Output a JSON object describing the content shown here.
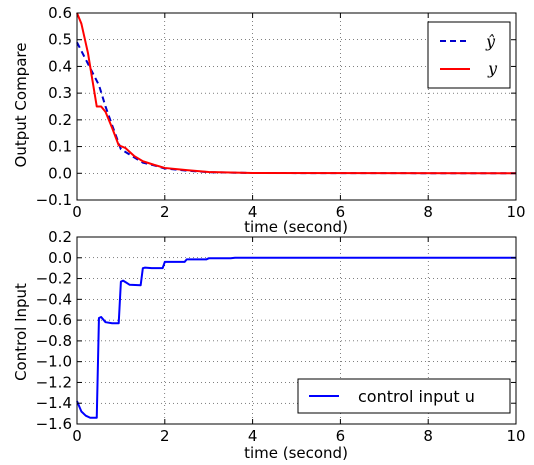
{
  "chart_data": [
    {
      "type": "line",
      "title": "",
      "xlabel": "time (second)",
      "ylabel": "Output Compare",
      "xlim": [
        0,
        10
      ],
      "ylim": [
        -0.1,
        0.6
      ],
      "xticks": [
        "0",
        "2",
        "4",
        "6",
        "8",
        "10"
      ],
      "yticks": [
        "−0.1",
        "0.0",
        "0.1",
        "0.2",
        "0.3",
        "0.4",
        "0.5",
        "0.6"
      ],
      "grid": true,
      "legend_position": "top-right",
      "series": [
        {
          "name": "ŷ",
          "color": "#0000cc",
          "style": "dashed",
          "points": [
            [
              0,
              0.49
            ],
            [
              0.25,
              0.41
            ],
            [
              0.5,
              0.33
            ],
            [
              0.65,
              0.25
            ],
            [
              0.8,
              0.18
            ],
            [
              1.0,
              0.09
            ],
            [
              1.25,
              0.065
            ],
            [
              1.5,
              0.04
            ],
            [
              1.75,
              0.03
            ],
            [
              2.0,
              0.018
            ],
            [
              2.5,
              0.01
            ],
            [
              3.0,
              0.004
            ],
            [
              4.0,
              0.001
            ],
            [
              10,
              0.0
            ]
          ]
        },
        {
          "name": "y",
          "color": "#ff0000",
          "style": "solid",
          "points": [
            [
              0,
              0.6
            ],
            [
              0.1,
              0.56
            ],
            [
              0.25,
              0.45
            ],
            [
              0.45,
              0.25
            ],
            [
              0.55,
              0.25
            ],
            [
              0.65,
              0.23
            ],
            [
              0.8,
              0.17
            ],
            [
              0.95,
              0.105
            ],
            [
              1.1,
              0.095
            ],
            [
              1.3,
              0.065
            ],
            [
              1.5,
              0.045
            ],
            [
              1.75,
              0.032
            ],
            [
              2.0,
              0.02
            ],
            [
              2.5,
              0.012
            ],
            [
              3.0,
              0.005
            ],
            [
              4.0,
              0.001
            ],
            [
              10,
              0.0
            ]
          ]
        }
      ]
    },
    {
      "type": "line",
      "title": "",
      "xlabel": "time (second)",
      "ylabel": "Control Input",
      "xlim": [
        0,
        10
      ],
      "ylim": [
        -1.6,
        0.2
      ],
      "xticks": [
        "0",
        "2",
        "4",
        "6",
        "8",
        "10"
      ],
      "yticks": [
        "−1.6",
        "−1.4",
        "−1.2",
        "−1.0",
        "−0.8",
        "−0.6",
        "−0.4",
        "−0.2",
        "0.0",
        "0.2"
      ],
      "grid": true,
      "legend_position": "bottom-right",
      "series": [
        {
          "name": "control input u",
          "color": "#0000ff",
          "style": "solid",
          "points": [
            [
              0,
              -1.38
            ],
            [
              0.1,
              -1.48
            ],
            [
              0.2,
              -1.52
            ],
            [
              0.3,
              -1.54
            ],
            [
              0.45,
              -1.54
            ],
            [
              0.5,
              -0.58
            ],
            [
              0.55,
              -0.57
            ],
            [
              0.65,
              -0.62
            ],
            [
              0.8,
              -0.63
            ],
            [
              0.95,
              -0.63
            ],
            [
              1.0,
              -0.23
            ],
            [
              1.05,
              -0.22
            ],
            [
              1.2,
              -0.26
            ],
            [
              1.45,
              -0.265
            ],
            [
              1.5,
              -0.1
            ],
            [
              1.55,
              -0.095
            ],
            [
              1.7,
              -0.1
            ],
            [
              1.95,
              -0.1
            ],
            [
              2.0,
              -0.04
            ],
            [
              2.2,
              -0.04
            ],
            [
              2.45,
              -0.04
            ],
            [
              2.5,
              -0.015
            ],
            [
              2.95,
              -0.015
            ],
            [
              3.0,
              -0.005
            ],
            [
              3.5,
              -0.005
            ],
            [
              3.6,
              0.0
            ],
            [
              10,
              0.0
            ]
          ]
        }
      ]
    }
  ]
}
